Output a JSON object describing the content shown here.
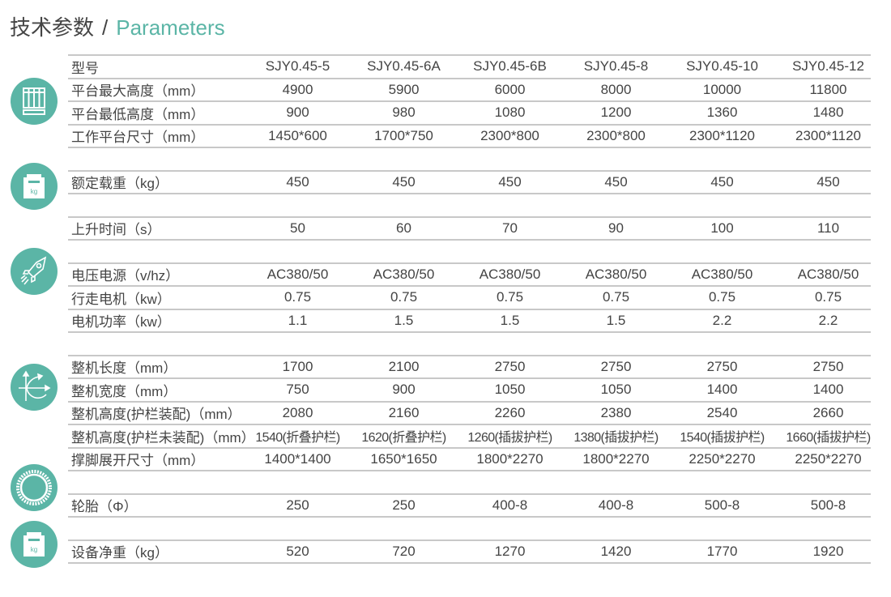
{
  "title": {
    "cn": "技术参数",
    "sep": "/",
    "en": "Parameters"
  },
  "accent_color": "#5bb5a6",
  "icons": [
    "platform-icon",
    "load-weight-icon",
    "rocket-icon",
    "dimension-arrows-icon",
    "tire-icon",
    "net-weight-icon"
  ],
  "icon_text": {
    "kg": "kg"
  },
  "groups": [
    {
      "rows": [
        {
          "label": "型号",
          "values": [
            "SJY0.45-5",
            "SJY0.45-6A",
            "SJY0.45-6B",
            "SJY0.45-8",
            "SJY0.45-10",
            "SJY0.45-12"
          ]
        },
        {
          "label": "平台最大高度（mm）",
          "values": [
            "4900",
            "5900",
            "6000",
            "8000",
            "10000",
            "11800"
          ]
        },
        {
          "label": "平台最低高度（mm）",
          "values": [
            "900",
            "980",
            "1080",
            "1200",
            "1360",
            "1480"
          ]
        },
        {
          "label": "工作平台尺寸（mm）",
          "values": [
            "1450*600",
            "1700*750",
            "2300*800",
            "2300*800",
            "2300*1120",
            "2300*1120"
          ]
        }
      ]
    },
    {
      "rows": [
        {
          "label": "额定载重（kg）",
          "values": [
            "450",
            "450",
            "450",
            "450",
            "450",
            "450"
          ]
        }
      ]
    },
    {
      "rows": [
        {
          "label": "上升时间（s）",
          "values": [
            "50",
            "60",
            "70",
            "90",
            "100",
            "110"
          ]
        }
      ]
    },
    {
      "rows": [
        {
          "label": "电压电源（v/hz）",
          "values": [
            "AC380/50",
            "AC380/50",
            "AC380/50",
            "AC380/50",
            "AC380/50",
            "AC380/50"
          ]
        },
        {
          "label": "行走电机（kw）",
          "values": [
            "0.75",
            "0.75",
            "0.75",
            "0.75",
            "0.75",
            "0.75"
          ]
        },
        {
          "label": "电机功率（kw）",
          "values": [
            "1.1",
            "1.5",
            "1.5",
            "1.5",
            "2.2",
            "2.2"
          ]
        }
      ]
    },
    {
      "rows": [
        {
          "label": "整机长度（mm）",
          "values": [
            "1700",
            "2100",
            "2750",
            "2750",
            "2750",
            "2750"
          ]
        },
        {
          "label": "整机宽度（mm）",
          "values": [
            "750",
            "900",
            "1050",
            "1050",
            "1400",
            "1400"
          ]
        },
        {
          "label": "整机高度(护栏装配)（mm）",
          "values": [
            "2080",
            "2160",
            "2260",
            "2380",
            "2540",
            "2660"
          ]
        },
        {
          "label": "整机高度(护栏未装配)（mm）",
          "values": [
            "1540(折叠护栏)",
            "1620(折叠护栏)",
            "1260(插拔护栏)",
            "1380(插拔护栏)",
            "1540(插拔护栏)",
            "1660(插拔护栏)"
          ]
        },
        {
          "label": "撑脚展开尺寸（mm）",
          "values": [
            "1400*1400",
            "1650*1650",
            "1800*2270",
            "1800*2270",
            "2250*2270",
            "2250*2270"
          ]
        }
      ]
    },
    {
      "rows": [
        {
          "label": "轮胎（Φ）",
          "values": [
            "250",
            "250",
            "400-8",
            "400-8",
            "500-8",
            "500-8"
          ]
        }
      ]
    },
    {
      "rows": [
        {
          "label": "设备净重（kg）",
          "values": [
            "520",
            "720",
            "1270",
            "1420",
            "1770",
            "1920"
          ]
        }
      ]
    }
  ]
}
